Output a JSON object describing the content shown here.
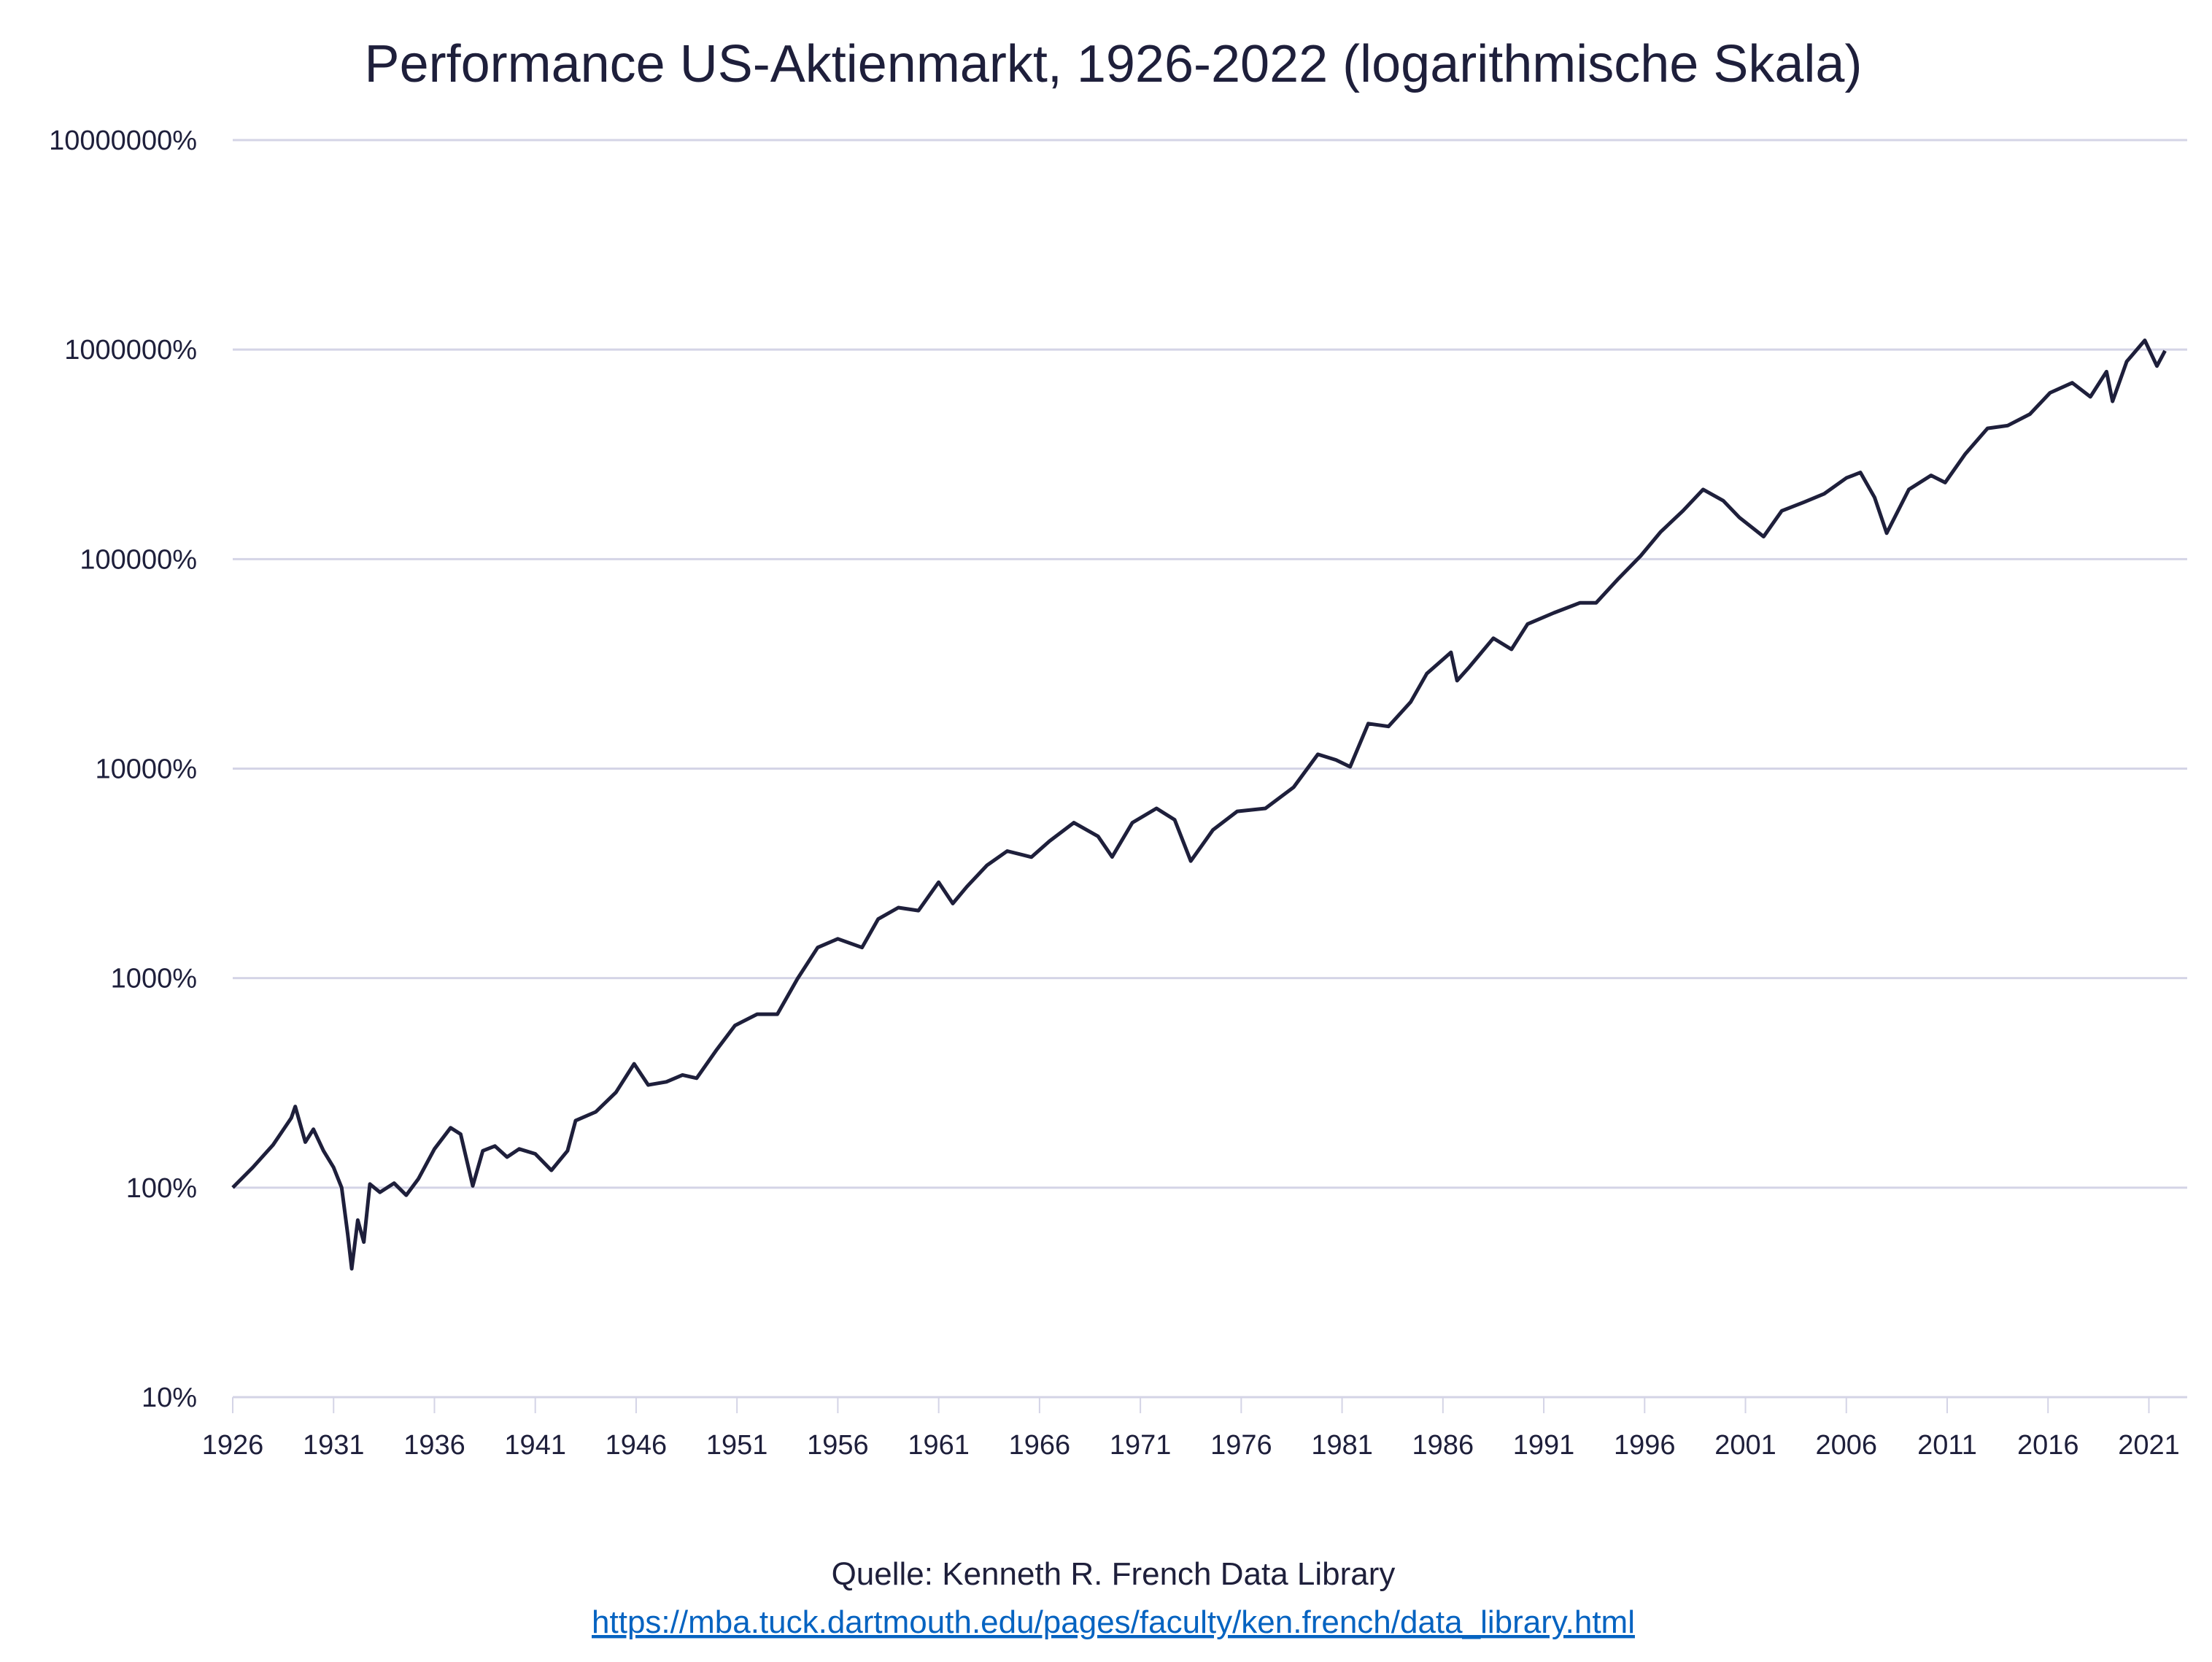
{
  "chart_data": {
    "type": "line",
    "title": "Performance US-Aktienmarkt, 1926-2022 (logarithmische Skala)",
    "xlabel": "",
    "ylabel": "",
    "yscale": "log",
    "ylim": [
      10,
      10000000
    ],
    "xlim": [
      1926,
      2022.9
    ],
    "grid": "horizontal",
    "y_ticks": [
      10,
      100,
      1000,
      10000,
      100000,
      1000000,
      10000000
    ],
    "y_tick_labels": [
      "10%",
      "100%",
      "1000%",
      "10000%",
      "100000%",
      "1000000%",
      "10000000%"
    ],
    "x_ticks": [
      1926,
      1931,
      1936,
      1941,
      1946,
      1951,
      1956,
      1961,
      1966,
      1971,
      1976,
      1981,
      1986,
      1991,
      1996,
      2001,
      2006,
      2011,
      2016,
      2021
    ],
    "x_tick_labels": [
      "1926",
      "1931",
      "1936",
      "1941",
      "1946",
      "1951",
      "1956",
      "1961",
      "1966",
      "1971",
      "1976",
      "1981",
      "1986",
      "1991",
      "1996",
      "2001",
      "2006",
      "2011",
      "2016",
      "2021"
    ],
    "colors": {
      "line": "#1e1f3b",
      "grid": "#d4d4e6",
      "text": "#1e1f3b",
      "link": "#0563c1"
    },
    "series": [
      {
        "points": [
          [
            1926.0,
            100
          ],
          [
            1927.0,
            125
          ],
          [
            1928.0,
            160
          ],
          [
            1928.9,
            215
          ],
          [
            1929.1,
            244
          ],
          [
            1929.6,
            165
          ],
          [
            1930.0,
            190
          ],
          [
            1930.5,
            150
          ],
          [
            1931.0,
            125
          ],
          [
            1931.4,
            100
          ],
          [
            1931.7,
            60
          ],
          [
            1931.9,
            41
          ],
          [
            1932.2,
            70
          ],
          [
            1932.5,
            55
          ],
          [
            1932.8,
            104
          ],
          [
            1933.3,
            95
          ],
          [
            1934.0,
            105
          ],
          [
            1934.6,
            92
          ],
          [
            1935.2,
            110
          ],
          [
            1936.0,
            153
          ],
          [
            1936.8,
            193
          ],
          [
            1937.3,
            180
          ],
          [
            1937.9,
            102
          ],
          [
            1938.4,
            150
          ],
          [
            1939.0,
            158
          ],
          [
            1939.6,
            140
          ],
          [
            1940.2,
            153
          ],
          [
            1941.0,
            145
          ],
          [
            1941.8,
            121
          ],
          [
            1942.6,
            150
          ],
          [
            1943.0,
            209
          ],
          [
            1944.0,
            230
          ],
          [
            1945.0,
            285
          ],
          [
            1945.9,
            390
          ],
          [
            1946.6,
            309
          ],
          [
            1947.5,
            320
          ],
          [
            1948.3,
            345
          ],
          [
            1949.0,
            333
          ],
          [
            1950.0,
            456
          ],
          [
            1950.9,
            594
          ],
          [
            1952.0,
            673
          ],
          [
            1953.0,
            673
          ],
          [
            1954.0,
            993
          ],
          [
            1955.0,
            1400
          ],
          [
            1956.0,
            1540
          ],
          [
            1957.2,
            1400
          ],
          [
            1958.0,
            1914
          ],
          [
            1959.0,
            2170
          ],
          [
            1960.0,
            2100
          ],
          [
            1961.0,
            2870
          ],
          [
            1961.7,
            2270
          ],
          [
            1962.4,
            2735
          ],
          [
            1963.4,
            3460
          ],
          [
            1964.4,
            4040
          ],
          [
            1965.6,
            3780
          ],
          [
            1966.5,
            4510
          ],
          [
            1967.7,
            5520
          ],
          [
            1968.9,
            4750
          ],
          [
            1969.6,
            3790
          ],
          [
            1970.6,
            5520
          ],
          [
            1971.8,
            6460
          ],
          [
            1972.7,
            5700
          ],
          [
            1973.5,
            3620
          ],
          [
            1974.6,
            5100
          ],
          [
            1975.8,
            6250
          ],
          [
            1977.2,
            6460
          ],
          [
            1978.6,
            8150
          ],
          [
            1979.8,
            11700
          ],
          [
            1980.7,
            11000
          ],
          [
            1981.4,
            10200
          ],
          [
            1982.3,
            16400
          ],
          [
            1983.3,
            15900
          ],
          [
            1984.4,
            20800
          ],
          [
            1985.2,
            28400
          ],
          [
            1986.4,
            35900
          ],
          [
            1986.7,
            26300
          ],
          [
            1987.3,
            30500
          ],
          [
            1988.5,
            41900
          ],
          [
            1989.4,
            37100
          ],
          [
            1990.2,
            49000
          ],
          [
            1991.5,
            55400
          ],
          [
            1992.8,
            61900
          ],
          [
            1993.6,
            61900
          ],
          [
            1994.7,
            80700
          ],
          [
            1995.8,
            103500
          ],
          [
            1996.8,
            135000
          ],
          [
            1997.9,
            170000
          ],
          [
            1998.9,
            215000
          ],
          [
            1999.9,
            190000
          ],
          [
            2000.7,
            158000
          ],
          [
            2001.9,
            128000
          ],
          [
            2002.8,
            170000
          ],
          [
            2003.9,
            187000
          ],
          [
            2004.9,
            205000
          ],
          [
            2006.0,
            244000
          ],
          [
            2006.7,
            259000
          ],
          [
            2007.4,
            197000
          ],
          [
            2008.0,
            133000
          ],
          [
            2009.1,
            215000
          ],
          [
            2010.2,
            251000
          ],
          [
            2010.9,
            232000
          ],
          [
            2011.9,
            318000
          ],
          [
            2013.0,
            421000
          ],
          [
            2014.0,
            434000
          ],
          [
            2015.1,
            492000
          ],
          [
            2016.1,
            622000
          ],
          [
            2017.2,
            694000
          ],
          [
            2018.1,
            595000
          ],
          [
            2018.9,
            785000
          ],
          [
            2019.2,
            566000
          ],
          [
            2019.9,
            877000
          ],
          [
            2020.8,
            1107000
          ],
          [
            2021.4,
            835000
          ],
          [
            2021.8,
            987000
          ]
        ]
      }
    ]
  },
  "footer": {
    "source": "Quelle: Kenneth R. French Data Library",
    "link": "https://mba.tuck.dartmouth.edu/pages/faculty/ken.french/data_library.html"
  }
}
